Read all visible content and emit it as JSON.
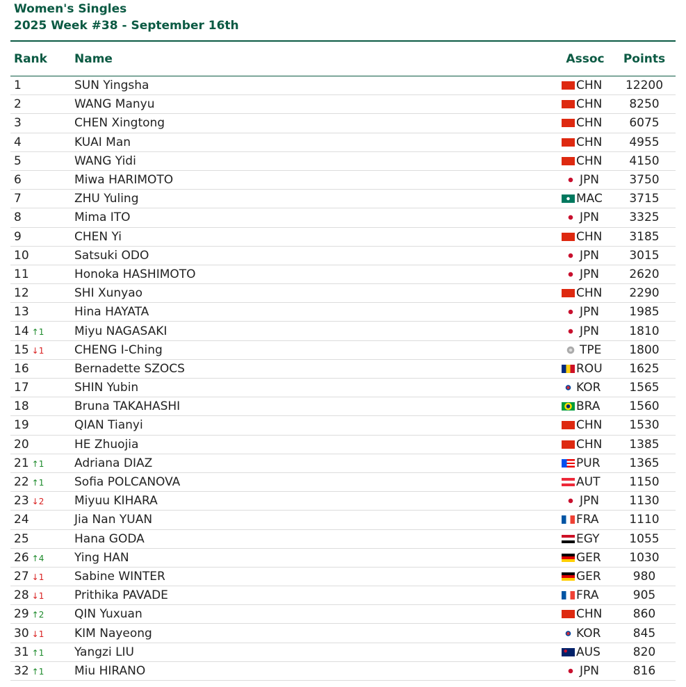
{
  "header": {
    "title": "Women's Singles",
    "subtitle": "2025 Week #38 - September 16th"
  },
  "columns": {
    "rank": "Rank",
    "name": "Name",
    "assoc": "Assoc",
    "points": "Points"
  },
  "colors": {
    "brand": "#0b5a43",
    "rank_up": "#1c8a2a",
    "rank_down": "#d92020"
  },
  "rows": [
    {
      "rank": "1",
      "change": "",
      "dir": "",
      "name": "SUN Yingsha",
      "assoc": "CHN",
      "flag": "flag-chn-icon",
      "points": "12200"
    },
    {
      "rank": "2",
      "change": "",
      "dir": "",
      "name": "WANG Manyu",
      "assoc": "CHN",
      "flag": "flag-chn-icon",
      "points": "8250"
    },
    {
      "rank": "3",
      "change": "",
      "dir": "",
      "name": "CHEN Xingtong",
      "assoc": "CHN",
      "flag": "flag-chn-icon",
      "points": "6075"
    },
    {
      "rank": "4",
      "change": "",
      "dir": "",
      "name": "KUAI Man",
      "assoc": "CHN",
      "flag": "flag-chn-icon",
      "points": "4955"
    },
    {
      "rank": "5",
      "change": "",
      "dir": "",
      "name": "WANG Yidi",
      "assoc": "CHN",
      "flag": "flag-chn-icon",
      "points": "4150"
    },
    {
      "rank": "6",
      "change": "",
      "dir": "",
      "name": "Miwa HARIMOTO",
      "assoc": "JPN",
      "flag": "flag-jpn-icon",
      "points": "3750"
    },
    {
      "rank": "7",
      "change": "",
      "dir": "",
      "name": "ZHU Yuling",
      "assoc": "MAC",
      "flag": "flag-mac-icon",
      "points": "3715"
    },
    {
      "rank": "8",
      "change": "",
      "dir": "",
      "name": "Mima ITO",
      "assoc": "JPN",
      "flag": "flag-jpn-icon",
      "points": "3325"
    },
    {
      "rank": "9",
      "change": "",
      "dir": "",
      "name": "CHEN Yi",
      "assoc": "CHN",
      "flag": "flag-chn-icon",
      "points": "3185"
    },
    {
      "rank": "10",
      "change": "",
      "dir": "",
      "name": "Satsuki ODO",
      "assoc": "JPN",
      "flag": "flag-jpn-icon",
      "points": "3015"
    },
    {
      "rank": "11",
      "change": "",
      "dir": "",
      "name": "Honoka HASHIMOTO",
      "assoc": "JPN",
      "flag": "flag-jpn-icon",
      "points": "2620"
    },
    {
      "rank": "12",
      "change": "",
      "dir": "",
      "name": "SHI Xunyao",
      "assoc": "CHN",
      "flag": "flag-chn-icon",
      "points": "2290"
    },
    {
      "rank": "13",
      "change": "",
      "dir": "",
      "name": "Hina HAYATA",
      "assoc": "JPN",
      "flag": "flag-jpn-icon",
      "points": "1985"
    },
    {
      "rank": "14",
      "change": "↑1",
      "dir": "up",
      "name": "Miyu NAGASAKI",
      "assoc": "JPN",
      "flag": "flag-jpn-icon",
      "points": "1810"
    },
    {
      "rank": "15",
      "change": "↓1",
      "dir": "down",
      "name": "CHENG I-Ching",
      "assoc": "TPE",
      "flag": "flag-tpe-icon",
      "points": "1800"
    },
    {
      "rank": "16",
      "change": "",
      "dir": "",
      "name": "Bernadette SZOCS",
      "assoc": "ROU",
      "flag": "flag-rou-icon",
      "points": "1625"
    },
    {
      "rank": "17",
      "change": "",
      "dir": "",
      "name": "SHIN Yubin",
      "assoc": "KOR",
      "flag": "flag-kor-icon",
      "points": "1565"
    },
    {
      "rank": "18",
      "change": "",
      "dir": "",
      "name": "Bruna TAKAHASHI",
      "assoc": "BRA",
      "flag": "flag-bra-icon",
      "points": "1560"
    },
    {
      "rank": "19",
      "change": "",
      "dir": "",
      "name": "QIAN Tianyi",
      "assoc": "CHN",
      "flag": "flag-chn-icon",
      "points": "1530"
    },
    {
      "rank": "20",
      "change": "",
      "dir": "",
      "name": "HE Zhuojia",
      "assoc": "CHN",
      "flag": "flag-chn-icon",
      "points": "1385"
    },
    {
      "rank": "21",
      "change": "↑1",
      "dir": "up",
      "name": "Adriana DIAZ",
      "assoc": "PUR",
      "flag": "flag-pur-icon",
      "points": "1365"
    },
    {
      "rank": "22",
      "change": "↑1",
      "dir": "up",
      "name": "Sofia POLCANOVA",
      "assoc": "AUT",
      "flag": "flag-aut-icon",
      "points": "1150"
    },
    {
      "rank": "23",
      "change": "↓2",
      "dir": "down",
      "name": "Miyuu KIHARA",
      "assoc": "JPN",
      "flag": "flag-jpn-icon",
      "points": "1130"
    },
    {
      "rank": "24",
      "change": "",
      "dir": "",
      "name": "Jia Nan YUAN",
      "assoc": "FRA",
      "flag": "flag-fra-icon",
      "points": "1110"
    },
    {
      "rank": "25",
      "change": "",
      "dir": "",
      "name": "Hana GODA",
      "assoc": "EGY",
      "flag": "flag-egy-icon",
      "points": "1055"
    },
    {
      "rank": "26",
      "change": "↑4",
      "dir": "up",
      "name": "Ying HAN",
      "assoc": "GER",
      "flag": "flag-ger-icon",
      "points": "1030"
    },
    {
      "rank": "27",
      "change": "↓1",
      "dir": "down",
      "name": "Sabine WINTER",
      "assoc": "GER",
      "flag": "flag-ger-icon",
      "points": "980"
    },
    {
      "rank": "28",
      "change": "↓1",
      "dir": "down",
      "name": "Prithika PAVADE",
      "assoc": "FRA",
      "flag": "flag-fra-icon",
      "points": "905"
    },
    {
      "rank": "29",
      "change": "↑2",
      "dir": "up",
      "name": "QIN Yuxuan",
      "assoc": "CHN",
      "flag": "flag-chn-icon",
      "points": "860"
    },
    {
      "rank": "30",
      "change": "↓1",
      "dir": "down",
      "name": "KIM Nayeong",
      "assoc": "KOR",
      "flag": "flag-kor-icon",
      "points": "845"
    },
    {
      "rank": "31",
      "change": "↑1",
      "dir": "up",
      "name": "Yangzi LIU",
      "assoc": "AUS",
      "flag": "flag-aus-icon",
      "points": "820"
    },
    {
      "rank": "32",
      "change": "↑1",
      "dir": "up",
      "name": "Miu HIRANO",
      "assoc": "JPN",
      "flag": "flag-jpn-icon",
      "points": "816"
    }
  ]
}
